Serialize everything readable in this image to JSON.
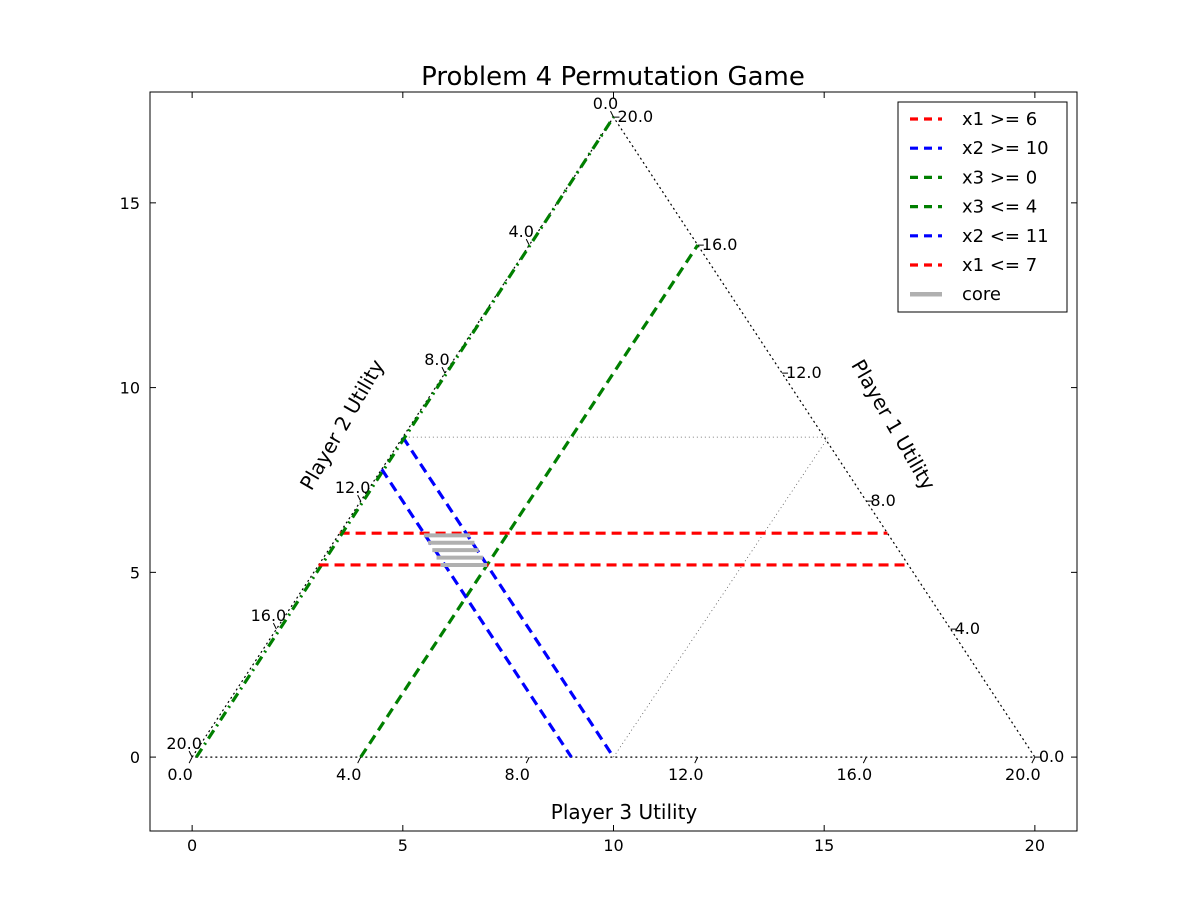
{
  "chart_data": {
    "type": "line",
    "title": "Problem 4 Permutation Game",
    "xlim": [
      -1,
      21
    ],
    "ylim": [
      -2,
      18
    ],
    "x_ticks": [
      0,
      5,
      10,
      15,
      20
    ],
    "y_ticks": [
      0,
      5,
      10,
      15
    ],
    "ternary": {
      "total": 20,
      "axis_labels": {
        "bottom": "Player 3 Utility",
        "left": "Player 2 Utility",
        "right": "Player 1 Utility"
      },
      "bottom_ticks": [
        "0.0",
        "4.0",
        "8.0",
        "12.0",
        "16.0",
        "20.0"
      ],
      "left_ticks": [
        "0.0",
        "4.0",
        "8.0",
        "12.0",
        "16.0",
        "20.0"
      ],
      "right_ticks": [
        "20.0",
        "16.0",
        "12.0",
        "8.0",
        "4.0",
        "0.0"
      ]
    },
    "boundary": {
      "x": [
        0,
        10,
        20,
        0
      ],
      "y": [
        0,
        17.32,
        0,
        0
      ]
    },
    "guides": [
      {
        "x": [
          10,
          15.1,
          5.1
        ],
        "y": [
          0,
          8.66,
          8.66
        ]
      }
    ],
    "series": [
      {
        "name": "x1 >= 6",
        "color": "#ff0000",
        "style": "dashed",
        "x": [
          3.5,
          16.5
        ],
        "y": [
          6.06,
          6.06
        ]
      },
      {
        "name": "x2 >= 10",
        "color": "#0000ff",
        "style": "dashed",
        "x": [
          5.0,
          10.0
        ],
        "y": [
          8.66,
          0
        ]
      },
      {
        "name": "x3 >= 0",
        "color": "#007f00",
        "style": "dashdot",
        "x": [
          0.1,
          10.0
        ],
        "y": [
          0,
          17.32
        ]
      },
      {
        "name": "x3 <= 4",
        "color": "#007f00",
        "style": "dashed",
        "x": [
          4.0,
          12.0
        ],
        "y": [
          0,
          13.86
        ]
      },
      {
        "name": "x2 <= 11",
        "color": "#0000ff",
        "style": "dashed",
        "x": [
          4.5,
          9.0
        ],
        "y": [
          7.79,
          0
        ]
      },
      {
        "name": "x1 <= 7",
        "color": "#ff0000",
        "style": "dashed",
        "x": [
          3.0,
          17.0
        ],
        "y": [
          5.2,
          5.2
        ]
      }
    ],
    "core": {
      "name": "core",
      "color": "#b0b0b0",
      "segments": [
        {
          "x": [
            5.5,
            6.6
          ],
          "y": [
            6.0,
            6.0
          ]
        },
        {
          "x": [
            5.6,
            6.7
          ],
          "y": [
            5.8,
            5.8
          ]
        },
        {
          "x": [
            5.7,
            6.8
          ],
          "y": [
            5.6,
            5.6
          ]
        },
        {
          "x": [
            5.8,
            6.9
          ],
          "y": [
            5.4,
            5.4
          ]
        },
        {
          "x": [
            5.9,
            7.0
          ],
          "y": [
            5.2,
            5.2
          ]
        }
      ]
    },
    "legend": {
      "position": "top-right",
      "entries": [
        "x1 >= 6",
        "x2 >= 10",
        "x3 >= 0",
        "x3 <= 4",
        "x2 <= 11",
        "x1 <= 7",
        "core"
      ]
    },
    "grid": false
  }
}
